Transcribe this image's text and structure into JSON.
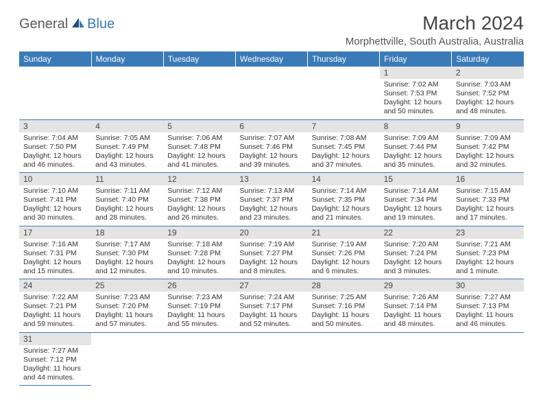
{
  "logo": {
    "part1": "General",
    "part2": "Blue"
  },
  "title": "March 2024",
  "location": "Morphettville, South Australia, Australia",
  "colors": {
    "header_bg": "#3b7ab8",
    "header_text": "#ffffff",
    "daynum_bg": "#e4e4e4",
    "border": "#3b7ab8",
    "logo_gray": "#5a5a5a",
    "logo_blue": "#3b7ab8"
  },
  "weekdays": [
    "Sunday",
    "Monday",
    "Tuesday",
    "Wednesday",
    "Thursday",
    "Friday",
    "Saturday"
  ],
  "weeks": [
    [
      null,
      null,
      null,
      null,
      null,
      {
        "n": "1",
        "sr": "7:02 AM",
        "ss": "7:53 PM",
        "dl": "12 hours and 50 minutes."
      },
      {
        "n": "2",
        "sr": "7:03 AM",
        "ss": "7:52 PM",
        "dl": "12 hours and 48 minutes."
      }
    ],
    [
      {
        "n": "3",
        "sr": "7:04 AM",
        "ss": "7:50 PM",
        "dl": "12 hours and 46 minutes."
      },
      {
        "n": "4",
        "sr": "7:05 AM",
        "ss": "7:49 PM",
        "dl": "12 hours and 43 minutes."
      },
      {
        "n": "5",
        "sr": "7:06 AM",
        "ss": "7:48 PM",
        "dl": "12 hours and 41 minutes."
      },
      {
        "n": "6",
        "sr": "7:07 AM",
        "ss": "7:46 PM",
        "dl": "12 hours and 39 minutes."
      },
      {
        "n": "7",
        "sr": "7:08 AM",
        "ss": "7:45 PM",
        "dl": "12 hours and 37 minutes."
      },
      {
        "n": "8",
        "sr": "7:09 AM",
        "ss": "7:44 PM",
        "dl": "12 hours and 35 minutes."
      },
      {
        "n": "9",
        "sr": "7:09 AM",
        "ss": "7:42 PM",
        "dl": "12 hours and 32 minutes."
      }
    ],
    [
      {
        "n": "10",
        "sr": "7:10 AM",
        "ss": "7:41 PM",
        "dl": "12 hours and 30 minutes."
      },
      {
        "n": "11",
        "sr": "7:11 AM",
        "ss": "7:40 PM",
        "dl": "12 hours and 28 minutes."
      },
      {
        "n": "12",
        "sr": "7:12 AM",
        "ss": "7:38 PM",
        "dl": "12 hours and 26 minutes."
      },
      {
        "n": "13",
        "sr": "7:13 AM",
        "ss": "7:37 PM",
        "dl": "12 hours and 23 minutes."
      },
      {
        "n": "14",
        "sr": "7:14 AM",
        "ss": "7:35 PM",
        "dl": "12 hours and 21 minutes."
      },
      {
        "n": "15",
        "sr": "7:14 AM",
        "ss": "7:34 PM",
        "dl": "12 hours and 19 minutes."
      },
      {
        "n": "16",
        "sr": "7:15 AM",
        "ss": "7:33 PM",
        "dl": "12 hours and 17 minutes."
      }
    ],
    [
      {
        "n": "17",
        "sr": "7:16 AM",
        "ss": "7:31 PM",
        "dl": "12 hours and 15 minutes."
      },
      {
        "n": "18",
        "sr": "7:17 AM",
        "ss": "7:30 PM",
        "dl": "12 hours and 12 minutes."
      },
      {
        "n": "19",
        "sr": "7:18 AM",
        "ss": "7:28 PM",
        "dl": "12 hours and 10 minutes."
      },
      {
        "n": "20",
        "sr": "7:19 AM",
        "ss": "7:27 PM",
        "dl": "12 hours and 8 minutes."
      },
      {
        "n": "21",
        "sr": "7:19 AM",
        "ss": "7:26 PM",
        "dl": "12 hours and 6 minutes."
      },
      {
        "n": "22",
        "sr": "7:20 AM",
        "ss": "7:24 PM",
        "dl": "12 hours and 3 minutes."
      },
      {
        "n": "23",
        "sr": "7:21 AM",
        "ss": "7:23 PM",
        "dl": "12 hours and 1 minute."
      }
    ],
    [
      {
        "n": "24",
        "sr": "7:22 AM",
        "ss": "7:21 PM",
        "dl": "11 hours and 59 minutes."
      },
      {
        "n": "25",
        "sr": "7:23 AM",
        "ss": "7:20 PM",
        "dl": "11 hours and 57 minutes."
      },
      {
        "n": "26",
        "sr": "7:23 AM",
        "ss": "7:19 PM",
        "dl": "11 hours and 55 minutes."
      },
      {
        "n": "27",
        "sr": "7:24 AM",
        "ss": "7:17 PM",
        "dl": "11 hours and 52 minutes."
      },
      {
        "n": "28",
        "sr": "7:25 AM",
        "ss": "7:16 PM",
        "dl": "11 hours and 50 minutes."
      },
      {
        "n": "29",
        "sr": "7:26 AM",
        "ss": "7:14 PM",
        "dl": "11 hours and 48 minutes."
      },
      {
        "n": "30",
        "sr": "7:27 AM",
        "ss": "7:13 PM",
        "dl": "11 hours and 46 minutes."
      }
    ],
    [
      {
        "n": "31",
        "sr": "7:27 AM",
        "ss": "7:12 PM",
        "dl": "11 hours and 44 minutes."
      },
      null,
      null,
      null,
      null,
      null,
      null
    ]
  ],
  "labels": {
    "sunrise": "Sunrise:",
    "sunset": "Sunset:",
    "daylight": "Daylight:"
  }
}
